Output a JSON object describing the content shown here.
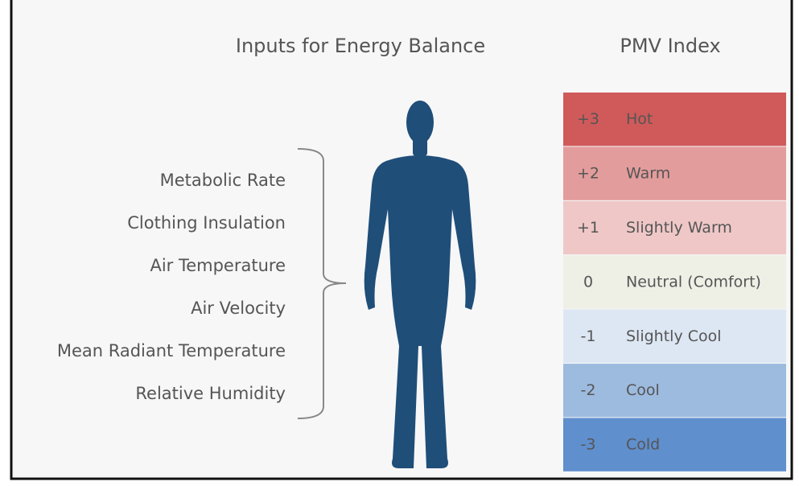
{
  "left_title": "Inputs for Energy Balance",
  "right_title": "PMV Index",
  "inputs": [
    "Metabolic Rate",
    "Clothing Insulation",
    "Air Temperature",
    "Air Velocity",
    "Mean Radiant Temperature",
    "Relative Humidity"
  ],
  "scale": [
    {
      "value": "+3",
      "label": "Hot",
      "color": "#d05a5a"
    },
    {
      "value": "+2",
      "label": "Warm",
      "color": "#e39c9c"
    },
    {
      "value": "+1",
      "label": "Slightly Warm",
      "color": "#efc7c7"
    },
    {
      "value": "0",
      "label": "Neutral (Comfort)",
      "color": "#eef0e6"
    },
    {
      "value": "-1",
      "label": "Slightly Cool",
      "color": "#dde7f3"
    },
    {
      "value": "-2",
      "label": "Cool",
      "color": "#9dbbdf"
    },
    {
      "value": "-3",
      "label": "Cold",
      "color": "#5f8fcd"
    }
  ]
}
